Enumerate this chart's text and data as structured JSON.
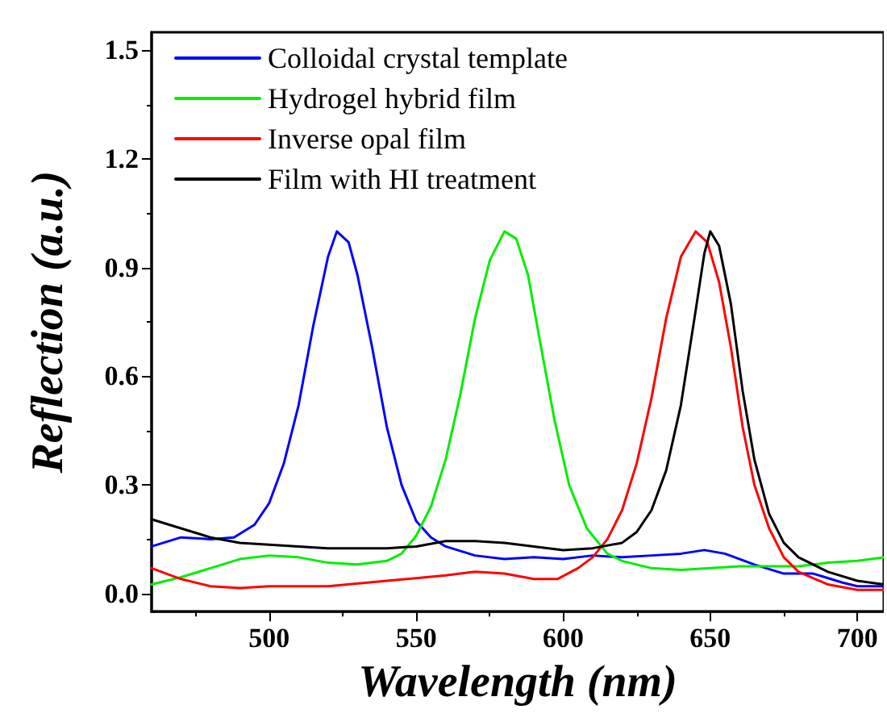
{
  "chart_data": {
    "type": "line",
    "xlabel": "Wavelength (nm)",
    "ylabel": "Reflection (a.u.)",
    "xlim": [
      460,
      709
    ],
    "ylim": [
      -0.05,
      1.55
    ],
    "xticks": [
      500,
      550,
      600,
      650,
      700
    ],
    "yticks": [
      {
        "value": 0,
        "label": "0.0"
      },
      0.3,
      0.6,
      0.9,
      1.2,
      1.5
    ],
    "legend": "top left",
    "grid": false,
    "marker": "none",
    "line_style": "solid",
    "series": [
      {
        "name": "Colloidal crystal template",
        "color": "#0000ff",
        "x": [
          460,
          470,
          480,
          488,
          495,
          500,
          505,
          510,
          515,
          520,
          523,
          527,
          530,
          535,
          540,
          545,
          550,
          555,
          560,
          570,
          580,
          590,
          600,
          610,
          620,
          630,
          640,
          648,
          655,
          665,
          675,
          685,
          695,
          700,
          709
        ],
        "values": [
          0.13,
          0.155,
          0.15,
          0.155,
          0.19,
          0.25,
          0.36,
          0.52,
          0.74,
          0.93,
          1.0,
          0.97,
          0.88,
          0.68,
          0.46,
          0.3,
          0.2,
          0.155,
          0.13,
          0.105,
          0.095,
          0.1,
          0.095,
          0.105,
          0.1,
          0.105,
          0.11,
          0.12,
          0.11,
          0.08,
          0.055,
          0.055,
          0.03,
          0.02,
          0.02
        ]
      },
      {
        "name": "Hydrogel hybrid film",
        "color": "#00ee00",
        "x": [
          460,
          470,
          480,
          490,
          500,
          510,
          520,
          530,
          540,
          545,
          550,
          555,
          560,
          565,
          570,
          575,
          580,
          584,
          588,
          592,
          597,
          602,
          608,
          615,
          620,
          630,
          640,
          650,
          660,
          680,
          690,
          700,
          709
        ],
        "values": [
          0.025,
          0.045,
          0.07,
          0.095,
          0.105,
          0.1,
          0.085,
          0.08,
          0.09,
          0.11,
          0.16,
          0.24,
          0.37,
          0.55,
          0.76,
          0.92,
          1.0,
          0.98,
          0.88,
          0.7,
          0.48,
          0.3,
          0.18,
          0.11,
          0.09,
          0.07,
          0.065,
          0.07,
          0.075,
          0.075,
          0.085,
          0.09,
          0.1
        ]
      },
      {
        "name": "Inverse opal film",
        "color": "#ff0000",
        "x": [
          460,
          470,
          480,
          490,
          500,
          520,
          540,
          560,
          570,
          580,
          590,
          598,
          605,
          610,
          615,
          620,
          625,
          630,
          635,
          640,
          645,
          649,
          653,
          657,
          661,
          665,
          670,
          675,
          680,
          690,
          700,
          709
        ],
        "values": [
          0.07,
          0.04,
          0.02,
          0.015,
          0.02,
          0.02,
          0.035,
          0.05,
          0.06,
          0.055,
          0.04,
          0.04,
          0.07,
          0.1,
          0.15,
          0.23,
          0.36,
          0.54,
          0.76,
          0.93,
          1.0,
          0.97,
          0.86,
          0.68,
          0.46,
          0.3,
          0.18,
          0.1,
          0.06,
          0.025,
          0.01,
          0.01
        ]
      },
      {
        "name": "Film with HI treatment",
        "color": "#000000",
        "x": [
          460,
          470,
          480,
          490,
          500,
          510,
          520,
          530,
          540,
          550,
          560,
          570,
          580,
          590,
          600,
          610,
          620,
          625,
          630,
          635,
          640,
          645,
          648,
          650,
          653,
          657,
          661,
          665,
          670,
          675,
          680,
          690,
          700,
          709
        ],
        "values": [
          0.205,
          0.18,
          0.155,
          0.14,
          0.135,
          0.13,
          0.125,
          0.125,
          0.125,
          0.13,
          0.145,
          0.145,
          0.14,
          0.13,
          0.12,
          0.125,
          0.14,
          0.17,
          0.23,
          0.34,
          0.52,
          0.78,
          0.94,
          1.0,
          0.96,
          0.8,
          0.56,
          0.37,
          0.22,
          0.14,
          0.1,
          0.06,
          0.035,
          0.025
        ]
      }
    ]
  }
}
